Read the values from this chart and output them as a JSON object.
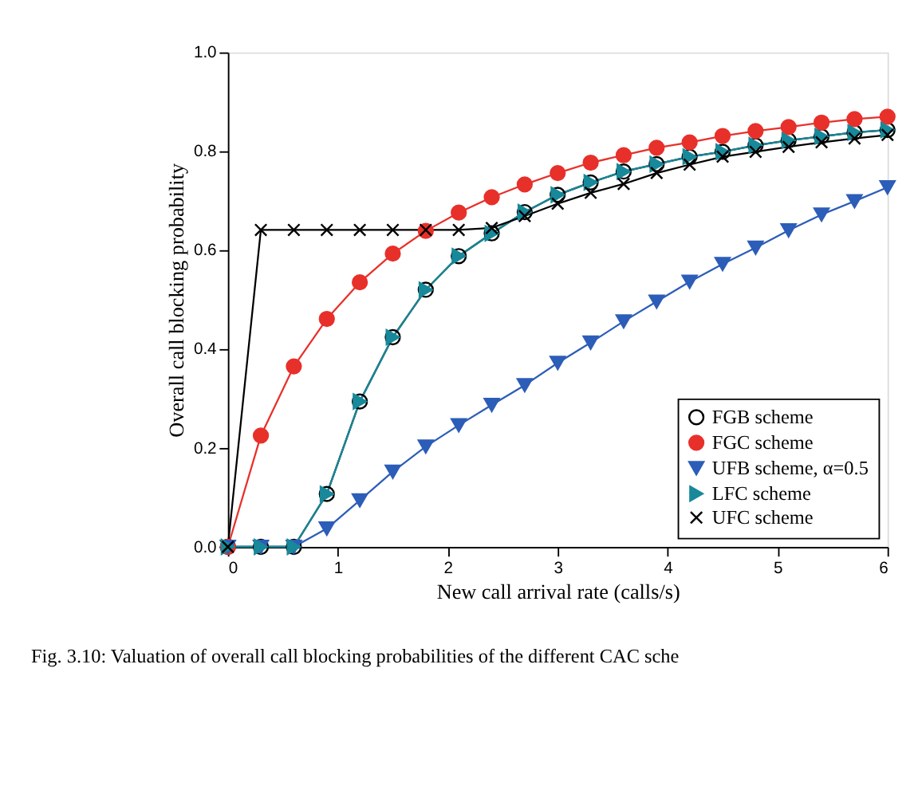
{
  "chart_data": {
    "type": "line",
    "xlabel": "New call arrival rate (calls/s)",
    "ylabel": "Overall call blocking probability",
    "x": [
      0,
      0.3,
      0.6,
      0.9,
      1.2,
      1.5,
      1.8,
      2.1,
      2.4,
      2.7,
      3.0,
      3.3,
      3.6,
      3.9,
      4.2,
      4.5,
      4.8,
      5.1,
      5.4,
      5.7,
      6.0
    ],
    "xlim": [
      0,
      6
    ],
    "xticks": [
      0,
      1,
      2,
      3,
      4,
      5,
      6
    ],
    "ylim": [
      0,
      1.0
    ],
    "yticks": [
      {
        "value": 0,
        "label": "0.0"
      },
      {
        "value": 0.2,
        "label": "0.2"
      },
      {
        "value": 0.4,
        "label": "0.4"
      },
      {
        "value": 0.6,
        "label": "0.6"
      },
      {
        "value": 0.8,
        "label": "0.8"
      },
      {
        "value": 1.0,
        "label": "1.0"
      }
    ],
    "grid": false,
    "legend": "bottom right",
    "line_style": "solid",
    "series": [
      {
        "name": "FGB scheme",
        "color": "#000000",
        "marker": "circle",
        "values": [
          0,
          0,
          0,
          0.107,
          0.294,
          0.424,
          0.52,
          0.588,
          0.634,
          0.677,
          0.712,
          0.737,
          0.759,
          0.774,
          0.789,
          0.799,
          0.812,
          0.822,
          0.83,
          0.838,
          0.843
        ]
      },
      {
        "name": "FGC scheme",
        "color": "#e8302a",
        "marker": "circle",
        "values": [
          0,
          0.225,
          0.365,
          0.461,
          0.535,
          0.593,
          0.639,
          0.676,
          0.707,
          0.733,
          0.756,
          0.777,
          0.792,
          0.807,
          0.818,
          0.831,
          0.841,
          0.849,
          0.858,
          0.865,
          0.87
        ]
      },
      {
        "name": "UFB scheme, α=0.5",
        "color": "#2c5db8",
        "marker": "triangle-down",
        "values": [
          0,
          0,
          0,
          0.037,
          0.094,
          0.152,
          0.203,
          0.246,
          0.287,
          0.327,
          0.372,
          0.413,
          0.456,
          0.496,
          0.536,
          0.572,
          0.605,
          0.64,
          0.672,
          0.699,
          0.727
        ]
      },
      {
        "name": "LFC scheme",
        "color": "#17899a",
        "marker": "triangle-right",
        "values": [
          0,
          0,
          0,
          0.107,
          0.294,
          0.424,
          0.52,
          0.588,
          0.634,
          0.677,
          0.712,
          0.737,
          0.759,
          0.774,
          0.789,
          0.799,
          0.812,
          0.822,
          0.83,
          0.838,
          0.843
        ]
      },
      {
        "name": "UFC scheme",
        "color": "#000000",
        "marker": "cross",
        "values": [
          0,
          0.641,
          0.641,
          0.641,
          0.641,
          0.641,
          0.641,
          0.641,
          0.645,
          0.669,
          0.694,
          0.716,
          0.734,
          0.756,
          0.773,
          0.789,
          0.799,
          0.809,
          0.818,
          0.826,
          0.833
        ]
      }
    ],
    "annotations": [
      "Fig. 3.10: Valuation of overall call blocking probabilities of the different CAC sche"
    ]
  }
}
